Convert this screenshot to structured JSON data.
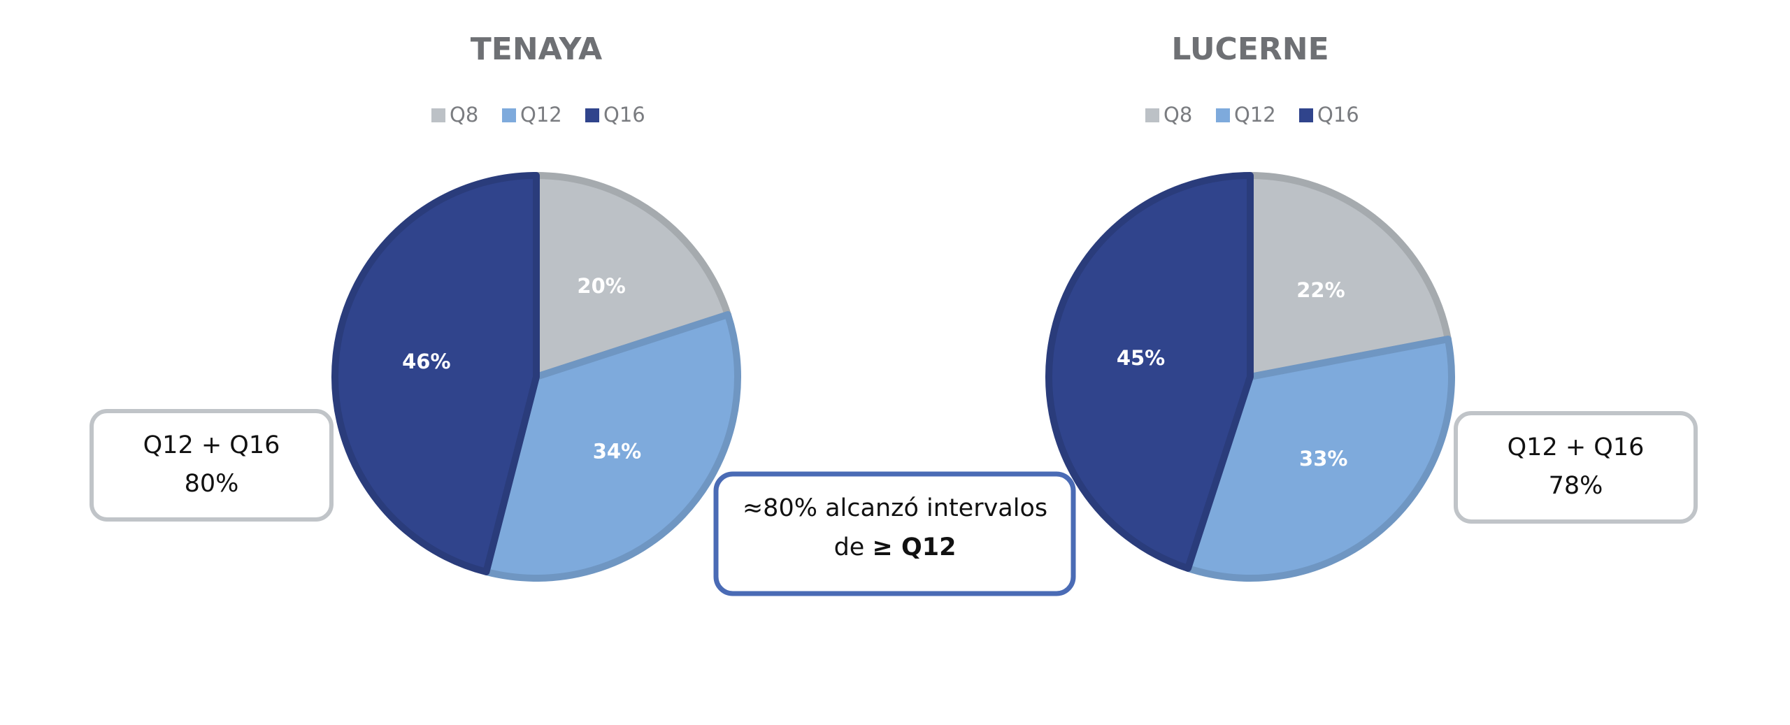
{
  "chart_data": [
    {
      "type": "pie",
      "title": "TENAYA",
      "categories": [
        "Q8",
        "Q12",
        "Q16"
      ],
      "values": [
        20,
        34,
        46
      ],
      "value_labels": [
        "20%",
        "34%",
        "46%"
      ],
      "colors": [
        "#bcc1c6",
        "#7eaadc",
        "#30448c"
      ],
      "legend": "top",
      "annotation": [
        "Q12 + Q16",
        "80%"
      ]
    },
    {
      "type": "pie",
      "title": "LUCERNE",
      "categories": [
        "Q8",
        "Q12",
        "Q16"
      ],
      "values": [
        22,
        33,
        45
      ],
      "value_labels": [
        "22%",
        "33%",
        "45%"
      ],
      "colors": [
        "#bcc1c6",
        "#7eaadc",
        "#30448c"
      ],
      "legend": "top",
      "annotation": [
        "Q12 + Q16",
        "78%"
      ]
    }
  ],
  "callout": {
    "lines": [
      "≈80% alcanzó intervalos",
      "de"
    ],
    "emphasis": "≥ Q12"
  }
}
